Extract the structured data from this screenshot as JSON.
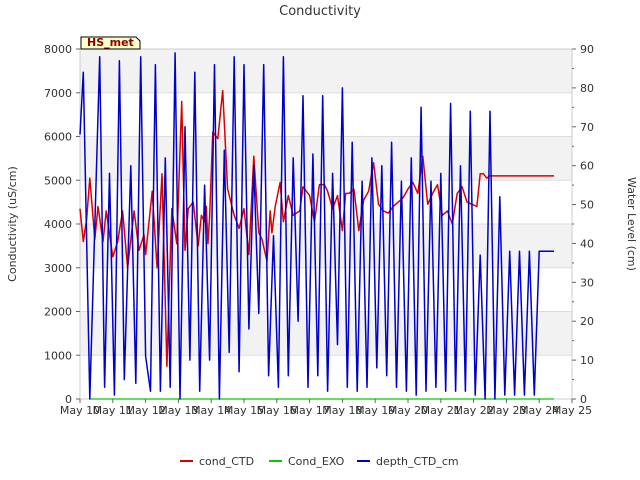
{
  "chart_data": {
    "type": "line",
    "title": "Conductivity",
    "station_label": "HS_met",
    "xlabel": "",
    "ylabel_left": "Conductivity (uS/cm)",
    "ylabel_right": "Water Level (cm)",
    "x_domain": [
      10,
      25
    ],
    "x_tick_values": [
      10,
      11,
      12,
      13,
      14,
      15,
      16,
      17,
      18,
      19,
      20,
      21,
      22,
      23,
      24,
      25
    ],
    "x_tick_labels": [
      "May 10",
      "May 11",
      "May 12",
      "May 13",
      "May 14",
      "May 15",
      "May 16",
      "May 17",
      "May 18",
      "May 19",
      "May 20",
      "May 21",
      "May 22",
      "May 23",
      "May 24",
      "May 25"
    ],
    "ylim_left": [
      0,
      8000
    ],
    "y_ticks_left": [
      0,
      1000,
      2000,
      3000,
      4000,
      5000,
      6000,
      7000,
      8000
    ],
    "ylim_right": [
      0,
      90
    ],
    "y_ticks_right": [
      0,
      10,
      20,
      30,
      40,
      50,
      60,
      70,
      80,
      90
    ],
    "grid": true,
    "colors": {
      "cond_CTD": "#dd0000",
      "Cond_EXO": "#00cc00",
      "depth_CTD_cm": "#0000cc",
      "band": "#f2f2f2",
      "label_bg": "#ffffcc",
      "label_text": "#8b0000"
    },
    "legend": [
      "cond_CTD",
      "Cond_EXO",
      "depth_CTD_cm"
    ],
    "series": [
      {
        "name": "cond_CTD",
        "axis": "left",
        "x": [
          10,
          10.1,
          10.2,
          10.3,
          10.45,
          10.55,
          10.7,
          10.8,
          11,
          11.15,
          11.3,
          11.45,
          11.65,
          11.8,
          11.95,
          12,
          12.2,
          12.35,
          12.5,
          12.65,
          12.8,
          12.95,
          13.1,
          13.2,
          13.3,
          13.45,
          13.6,
          13.7,
          13.8,
          13.85,
          13.9,
          13.95,
          14.05,
          14.2,
          14.35,
          14.5,
          14.7,
          14.85,
          15,
          15.15,
          15.3,
          15.45,
          15.55,
          15.7,
          15.8,
          15.85,
          15.95,
          16.1,
          16.2,
          16.35,
          16.5,
          16.7,
          16.8,
          16.9,
          17,
          17.15,
          17.3,
          17.45,
          17.55,
          17.7,
          17.85,
          18,
          18.1,
          18.2,
          18.35,
          18.5,
          18.65,
          18.8,
          18.95,
          19.1,
          19.25,
          19.4,
          19.55,
          19.7,
          19.85,
          20,
          20.15,
          20.3,
          20.45,
          20.6,
          20.75,
          20.9,
          21.05,
          21.2,
          21.35,
          21.5,
          21.65,
          21.8,
          21.95,
          22.1,
          22.2,
          22.3,
          22.4,
          22.5,
          22.6,
          22.75,
          22.9,
          23.05,
          23.15,
          23.25,
          23.4,
          23.5,
          23.6,
          23.7,
          24,
          24.15,
          24.3,
          24.45
        ],
        "values": [
          4350,
          3600,
          4100,
          5050,
          3650,
          4400,
          3600,
          4300,
          3250,
          3600,
          4300,
          3000,
          4300,
          3400,
          3750,
          3300,
          4750,
          3000,
          5150,
          750,
          4350,
          3550,
          6800,
          3400,
          4350,
          4500,
          3500,
          4200,
          4050,
          4400,
          3550,
          4150,
          6100,
          5950,
          7050,
          4800,
          4200,
          3900,
          4350,
          3300,
          5550,
          3800,
          3650,
          3150,
          4300,
          3800,
          4400,
          4950,
          4050,
          4650,
          4200,
          4300,
          4850,
          4750,
          4650,
          4050,
          4900,
          4900,
          4750,
          4350,
          4650,
          3850,
          4700,
          4700,
          4800,
          3850,
          4550,
          4750,
          5400,
          4450,
          4300,
          4250,
          4400,
          4500,
          4600,
          4800,
          4950,
          4700,
          5550,
          4450,
          4700,
          4900,
          4200,
          4300,
          4000,
          4700,
          4850,
          4500,
          4450,
          4400,
          5150,
          5150,
          5050,
          5100,
          5100,
          5100,
          5100,
          5100,
          5100,
          5100,
          5100,
          5100,
          5100,
          5100,
          5100,
          5100,
          5100,
          5100
        ],
        "visible_range": [
          10,
          24.45
        ]
      },
      {
        "name": "Cond_EXO",
        "axis": "left",
        "x": [
          10.3,
          24.45
        ],
        "values": [
          0,
          0
        ]
      },
      {
        "name": "depth_CTD_cm",
        "axis": "right",
        "x": [
          10,
          10.1,
          10.3,
          10.6,
          10.75,
          10.9,
          11.05,
          11.2,
          11.35,
          11.55,
          11.7,
          11.85,
          12,
          12.15,
          12.3,
          12.45,
          12.6,
          12.75,
          12.9,
          13.05,
          13.2,
          13.35,
          13.5,
          13.65,
          13.8,
          13.95,
          14.1,
          14.25,
          14.4,
          14.55,
          14.7,
          14.85,
          15,
          15.15,
          15.3,
          15.45,
          15.6,
          15.75,
          15.9,
          16.05,
          16.2,
          16.35,
          16.5,
          16.65,
          16.8,
          16.95,
          17.1,
          17.25,
          17.4,
          17.55,
          17.7,
          17.85,
          18,
          18.15,
          18.3,
          18.45,
          18.6,
          18.75,
          18.9,
          19.05,
          19.2,
          19.35,
          19.5,
          19.65,
          19.8,
          19.95,
          20.1,
          20.25,
          20.4,
          20.55,
          20.7,
          20.85,
          21,
          21.15,
          21.3,
          21.45,
          21.6,
          21.75,
          21.9,
          22.05,
          22.2,
          22.35,
          22.5,
          22.65,
          22.8,
          22.95,
          23.1,
          23.25,
          23.4,
          23.55,
          23.7,
          23.85,
          24,
          24.15,
          24.3,
          24.45
        ],
        "values": [
          68,
          84,
          0,
          88,
          3,
          58,
          1,
          87,
          5,
          60,
          4,
          88,
          11,
          2,
          86,
          2,
          62,
          3,
          89,
          0,
          70,
          10,
          84,
          2,
          55,
          10,
          86,
          0,
          64,
          12,
          88,
          7,
          86,
          18,
          60,
          22,
          86,
          6,
          42,
          3,
          88,
          6,
          62,
          20,
          78,
          3,
          63,
          6,
          78,
          2,
          58,
          14,
          80,
          3,
          66,
          2,
          56,
          3,
          62,
          8,
          60,
          6,
          66,
          3,
          56,
          2,
          62,
          1,
          75,
          2,
          56,
          3,
          58,
          2,
          76,
          2,
          60,
          2,
          74,
          1,
          37,
          0,
          74,
          0,
          52,
          1,
          38,
          1,
          38,
          1,
          38,
          1,
          38,
          38,
          38,
          38
        ]
      }
    ]
  }
}
